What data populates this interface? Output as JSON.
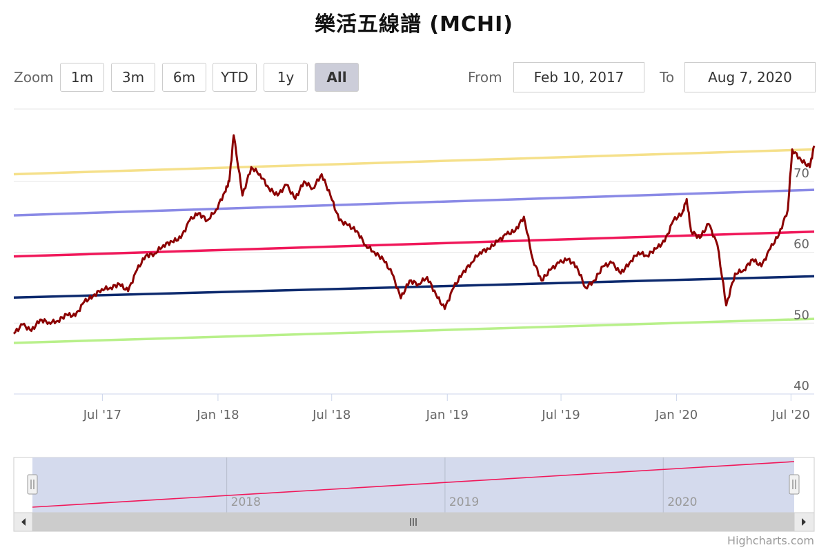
{
  "title": "樂活五線譜 (MCHI)",
  "toolbar": {
    "zoom_label": "Zoom",
    "buttons": [
      "1m",
      "3m",
      "6m",
      "YTD",
      "1y",
      "All"
    ],
    "selected": "All",
    "from_label": "From",
    "from_value": "Feb 10, 2017",
    "to_label": "To",
    "to_value": "Aug 7, 2020"
  },
  "credit": "Highcharts.com",
  "colors": {
    "price": "#8b0000",
    "plus2sd": "#f5e08a",
    "plus1sd": "#8a8ae6",
    "trend": "#f0185a",
    "minus1sd": "#0d2a6e",
    "minus2sd": "#b8f08a",
    "navigator_mask": "#d2d8ec"
  },
  "chart_data": {
    "type": "line",
    "x_range": [
      "2017-02-10",
      "2020-08-07"
    ],
    "y_range": [
      40,
      80
    ],
    "y_ticks": [
      "40",
      "50",
      "60",
      "70"
    ],
    "x_ticks": [
      {
        "date": "2017-07-01",
        "label": "Jul '17"
      },
      {
        "date": "2018-01-01",
        "label": "Jan '18"
      },
      {
        "date": "2018-07-01",
        "label": "Jul '18"
      },
      {
        "date": "2019-01-01",
        "label": "Jan '19"
      },
      {
        "date": "2019-07-01",
        "label": "Jul '19"
      },
      {
        "date": "2020-01-01",
        "label": "Jan '20"
      },
      {
        "date": "2020-07-01",
        "label": "Jul '20"
      }
    ],
    "bands": [
      {
        "key": "plus2sd",
        "start": 71.0,
        "end": 74.5
      },
      {
        "key": "plus1sd",
        "start": 65.2,
        "end": 68.8
      },
      {
        "key": "trend",
        "start": 59.4,
        "end": 62.9
      },
      {
        "key": "minus1sd",
        "start": 53.6,
        "end": 56.6
      },
      {
        "key": "minus2sd",
        "start": 47.2,
        "end": 50.6
      }
    ],
    "price": [
      [
        "2017-02-10",
        48.5
      ],
      [
        "2017-02-24",
        49.8
      ],
      [
        "2017-03-10",
        48.9
      ],
      [
        "2017-03-24",
        50.5
      ],
      [
        "2017-04-07",
        50.1
      ],
      [
        "2017-04-21",
        50.3
      ],
      [
        "2017-05-05",
        51.2
      ],
      [
        "2017-05-19",
        51.0
      ],
      [
        "2017-06-02",
        53.0
      ],
      [
        "2017-06-16",
        53.8
      ],
      [
        "2017-06-30",
        54.8
      ],
      [
        "2017-07-14",
        55.0
      ],
      [
        "2017-07-28",
        55.5
      ],
      [
        "2017-08-11",
        54.5
      ],
      [
        "2017-08-25",
        57.5
      ],
      [
        "2017-09-08",
        59.5
      ],
      [
        "2017-09-22",
        59.8
      ],
      [
        "2017-10-06",
        61.0
      ],
      [
        "2017-10-20",
        61.5
      ],
      [
        "2017-11-03",
        62.0
      ],
      [
        "2017-11-17",
        64.5
      ],
      [
        "2017-12-01",
        65.5
      ],
      [
        "2017-12-15",
        64.5
      ],
      [
        "2017-12-29",
        66.0
      ],
      [
        "2018-01-12",
        68.5
      ],
      [
        "2018-01-19",
        70.0
      ],
      [
        "2018-01-26",
        76.5
      ],
      [
        "2018-02-09",
        68.0
      ],
      [
        "2018-02-23",
        72.0
      ],
      [
        "2018-03-09",
        71.0
      ],
      [
        "2018-03-23",
        69.0
      ],
      [
        "2018-04-06",
        68.0
      ],
      [
        "2018-04-20",
        69.5
      ],
      [
        "2018-05-04",
        67.5
      ],
      [
        "2018-05-18",
        70.0
      ],
      [
        "2018-06-01",
        69.0
      ],
      [
        "2018-06-15",
        71.0
      ],
      [
        "2018-06-29",
        68.0
      ],
      [
        "2018-07-13",
        64.5
      ],
      [
        "2018-07-27",
        63.8
      ],
      [
        "2018-08-10",
        63.0
      ],
      [
        "2018-08-24",
        61.0
      ],
      [
        "2018-09-07",
        60.0
      ],
      [
        "2018-09-21",
        59.0
      ],
      [
        "2018-10-05",
        57.0
      ],
      [
        "2018-10-19",
        53.5
      ],
      [
        "2018-11-02",
        56.0
      ],
      [
        "2018-11-16",
        55.5
      ],
      [
        "2018-11-30",
        56.5
      ],
      [
        "2018-12-14",
        54.0
      ],
      [
        "2018-12-28",
        52.0
      ],
      [
        "2019-01-11",
        55.0
      ],
      [
        "2019-01-25",
        57.0
      ],
      [
        "2019-02-08",
        58.5
      ],
      [
        "2019-02-22",
        60.0
      ],
      [
        "2019-03-08",
        60.5
      ],
      [
        "2019-03-22",
        61.5
      ],
      [
        "2019-04-05",
        62.5
      ],
      [
        "2019-04-19",
        63.0
      ],
      [
        "2019-05-03",
        65.0
      ],
      [
        "2019-05-17",
        59.0
      ],
      [
        "2019-05-31",
        56.0
      ],
      [
        "2019-06-14",
        57.5
      ],
      [
        "2019-06-28",
        58.5
      ],
      [
        "2019-07-12",
        59.0
      ],
      [
        "2019-07-26",
        58.0
      ],
      [
        "2019-08-09",
        55.0
      ],
      [
        "2019-08-23",
        56.0
      ],
      [
        "2019-09-06",
        58.0
      ],
      [
        "2019-09-20",
        58.5
      ],
      [
        "2019-10-04",
        57.0
      ],
      [
        "2019-10-18",
        58.5
      ],
      [
        "2019-11-01",
        60.0
      ],
      [
        "2019-11-15",
        59.5
      ],
      [
        "2019-11-29",
        60.5
      ],
      [
        "2019-12-13",
        61.5
      ],
      [
        "2019-12-27",
        64.5
      ],
      [
        "2020-01-10",
        65.5
      ],
      [
        "2020-01-17",
        67.5
      ],
      [
        "2020-01-24",
        63.0
      ],
      [
        "2020-02-07",
        62.0
      ],
      [
        "2020-02-21",
        64.0
      ],
      [
        "2020-03-06",
        61.0
      ],
      [
        "2020-03-20",
        52.5
      ],
      [
        "2020-04-03",
        57.0
      ],
      [
        "2020-04-17",
        57.5
      ],
      [
        "2020-05-01",
        59.0
      ],
      [
        "2020-05-15",
        58.0
      ],
      [
        "2020-05-29",
        60.5
      ],
      [
        "2020-06-12",
        62.5
      ],
      [
        "2020-06-26",
        66.0
      ],
      [
        "2020-07-03",
        74.5
      ],
      [
        "2020-07-17",
        73.0
      ],
      [
        "2020-07-31",
        72.0
      ],
      [
        "2020-08-07",
        75.0
      ]
    ],
    "navigator": {
      "x_ticks": [
        {
          "date": "2018-01-01",
          "label": "2018"
        },
        {
          "date": "2019-01-01",
          "label": "2019"
        },
        {
          "date": "2020-01-01",
          "label": "2020"
        }
      ],
      "line_y_range": [
        59.4,
        62.9
      ]
    }
  }
}
